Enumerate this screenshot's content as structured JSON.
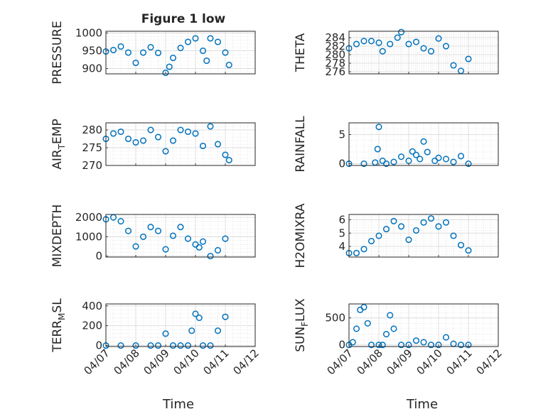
{
  "figure": {
    "title": "Figure 1 low",
    "time_label": "Time",
    "time_ticks": [
      "04/07",
      "04/08",
      "04/09",
      "04/10",
      "04/11",
      "04/12"
    ],
    "marker_color": "#0072bd",
    "marker": "open-circle",
    "grid": "on (major and minor)"
  },
  "chart_data": [
    {
      "type": "scatter",
      "ylabel": "PRESSURE",
      "ylim": [
        885,
        1005
      ],
      "yticks": [
        "1000",
        "950",
        "900"
      ],
      "ytick_values": [
        1000,
        950,
        900
      ],
      "xlim": [
        "04/07",
        "04/12"
      ],
      "x": [
        "04/07 00:00",
        "04/07 06:00",
        "04/07 12:00",
        "04/07 18:00",
        "04/08 00:00",
        "04/08 06:00",
        "04/08 12:00",
        "04/08 18:00",
        "04/09 00:00",
        "04/09 03:00",
        "04/09 06:00",
        "04/09 12:00",
        "04/09 18:00",
        "04/10 00:00",
        "04/10 06:00",
        "04/10 09:00",
        "04/10 12:00",
        "04/10 18:00",
        "04/11 00:00",
        "04/11 03:00"
      ],
      "y": [
        948,
        952,
        962,
        945,
        916,
        945,
        960,
        944,
        888,
        905,
        930,
        958,
        975,
        985,
        950,
        922,
        985,
        975,
        945,
        910
      ]
    },
    {
      "type": "scatter",
      "ylabel": "THETA",
      "ylim": [
        275.5,
        285.5
      ],
      "yticks": [
        "284",
        "282",
        "280",
        "278",
        "276"
      ],
      "ytick_values": [
        284,
        282,
        280,
        278,
        276
      ],
      "xlim": [
        "04/07",
        "04/12"
      ],
      "x": [
        "04/07 00:00",
        "04/07 06:00",
        "04/07 12:00",
        "04/07 18:00",
        "04/08 00:00",
        "04/08 03:00",
        "04/08 09:00",
        "04/08 15:00",
        "04/08 18:00",
        "04/09 00:00",
        "04/09 06:00",
        "04/09 12:00",
        "04/09 18:00",
        "04/10 00:00",
        "04/10 06:00",
        "04/10 12:00",
        "04/10 18:00",
        "04/11 00:00"
      ],
      "y": [
        281.5,
        282.5,
        283.2,
        283.2,
        282.8,
        280.8,
        282.5,
        284,
        285.3,
        282.5,
        283,
        281.5,
        280.8,
        283.8,
        282,
        277.5,
        276.2,
        279
      ]
    },
    {
      "type": "scatter",
      "ylabel": "AIR_TEMP",
      "ylim": [
        270,
        282
      ],
      "yticks": [
        "280",
        "275",
        "270"
      ],
      "ytick_values": [
        280,
        275,
        270
      ],
      "xlim": [
        "04/07",
        "04/12"
      ],
      "x": [
        "04/07 00:00",
        "04/07 06:00",
        "04/07 12:00",
        "04/07 18:00",
        "04/08 00:00",
        "04/08 06:00",
        "04/08 12:00",
        "04/08 18:00",
        "04/09 00:00",
        "04/09 06:00",
        "04/09 12:00",
        "04/09 18:00",
        "04/10 00:00",
        "04/10 06:00",
        "04/10 12:00",
        "04/10 18:00",
        "04/11 00:00",
        "04/11 03:00"
      ],
      "y": [
        277.5,
        279,
        279.5,
        277.5,
        276.5,
        277,
        280,
        278,
        274,
        277,
        280,
        279.5,
        279,
        275.5,
        281,
        276,
        273,
        271.5
      ]
    },
    {
      "type": "scatter",
      "ylabel": "RAINFALL",
      "ylim": [
        -0.3,
        7
      ],
      "yticks": [
        "5",
        "0"
      ],
      "ytick_values": [
        5,
        0
      ],
      "xlim": [
        "04/07",
        "04/12"
      ],
      "x": [
        "04/07 00:00",
        "04/07 12:00",
        "04/07 21:00",
        "04/07 23:00",
        "04/08 00:00",
        "04/08 03:00",
        "04/08 06:00",
        "04/08 12:00",
        "04/08 18:00",
        "04/09 00:00",
        "04/09 03:00",
        "04/09 06:00",
        "04/09 09:00",
        "04/09 12:00",
        "04/09 15:00",
        "04/09 21:00",
        "04/10 00:00",
        "04/10 06:00",
        "04/10 12:00",
        "04/10 18:00",
        "04/11 00:00"
      ],
      "y": [
        0,
        0,
        0.2,
        2.5,
        6.3,
        0.5,
        0,
        0.3,
        1.2,
        0.5,
        2.1,
        1.5,
        0.8,
        3.8,
        2,
        0.5,
        1,
        0.8,
        0.3,
        1.3,
        0
      ]
    },
    {
      "type": "scatter",
      "ylabel": "MIXDEPTH",
      "ylim": [
        -50,
        2150
      ],
      "yticks": [
        "2000",
        "1000",
        "0"
      ],
      "ytick_values": [
        2000,
        1000,
        0
      ],
      "xlim": [
        "04/07",
        "04/12"
      ],
      "x": [
        "04/07 00:00",
        "04/07 06:00",
        "04/07 12:00",
        "04/07 18:00",
        "04/08 00:00",
        "04/08 06:00",
        "04/08 12:00",
        "04/08 18:00",
        "04/09 00:00",
        "04/09 06:00",
        "04/09 12:00",
        "04/09 18:00",
        "04/10 00:00",
        "04/10 03:00",
        "04/10 06:00",
        "04/10 12:00",
        "04/10 18:00",
        "04/11 00:00"
      ],
      "y": [
        1900,
        2000,
        1800,
        1300,
        500,
        1000,
        1500,
        1300,
        350,
        1050,
        1500,
        900,
        600,
        450,
        750,
        0,
        300,
        900
      ]
    },
    {
      "type": "scatter",
      "ylabel": "H2OMIXRA",
      "ylim": [
        3.2,
        6.4
      ],
      "yticks": [
        "6",
        "5",
        "4"
      ],
      "ytick_values": [
        6,
        5,
        4
      ],
      "xlim": [
        "04/07",
        "04/12"
      ],
      "x": [
        "04/07 00:00",
        "04/07 06:00",
        "04/07 12:00",
        "04/07 18:00",
        "04/08 00:00",
        "04/08 06:00",
        "04/08 12:00",
        "04/08 18:00",
        "04/09 00:00",
        "04/09 06:00",
        "04/09 12:00",
        "04/09 18:00",
        "04/10 00:00",
        "04/10 06:00",
        "04/10 12:00",
        "04/10 18:00",
        "04/11 00:00"
      ],
      "y": [
        3.5,
        3.5,
        3.8,
        4.4,
        4.8,
        5.3,
        5.9,
        5.5,
        4.5,
        5.2,
        5.8,
        6.1,
        5.5,
        5.8,
        4.8,
        4.1,
        3.7
      ]
    },
    {
      "type": "scatter",
      "ylabel": "TERR_MSL",
      "ylim": [
        -10,
        420
      ],
      "yticks": [
        "400",
        "200",
        "0"
      ],
      "ytick_values": [
        400,
        200,
        0
      ],
      "xlim": [
        "04/07",
        "04/12"
      ],
      "x": [
        "04/07 00:00",
        "04/07 12:00",
        "04/08 00:00",
        "04/08 12:00",
        "04/08 18:00",
        "04/09 00:00",
        "04/09 06:00",
        "04/09 12:00",
        "04/09 18:00",
        "04/09 21:00",
        "04/10 00:00",
        "04/10 03:00",
        "04/10 06:00",
        "04/10 12:00",
        "04/10 18:00",
        "04/11 00:00"
      ],
      "y": [
        0,
        0,
        0,
        0,
        0,
        120,
        0,
        0,
        0,
        150,
        320,
        280,
        0,
        0,
        150,
        290
      ]
    },
    {
      "type": "scatter",
      "ylabel": "SUN_FLUX",
      "ylim": [
        -30,
        760
      ],
      "yticks": [
        "500",
        "0"
      ],
      "ytick_values": [
        500,
        0
      ],
      "xlim": [
        "04/07",
        "04/12"
      ],
      "x": [
        "04/07 00:00",
        "04/07 03:00",
        "04/07 06:00",
        "04/07 09:00",
        "04/07 12:00",
        "04/07 15:00",
        "04/07 18:00",
        "04/08 00:00",
        "04/08 03:00",
        "04/08 06:00",
        "04/08 09:00",
        "04/08 12:00",
        "04/08 18:00",
        "04/09 00:00",
        "04/09 06:00",
        "04/09 12:00",
        "04/09 18:00",
        "04/10 00:00",
        "04/10 06:00",
        "04/10 12:00",
        "04/10 18:00",
        "04/11 00:00"
      ],
      "y": [
        0,
        50,
        300,
        650,
        700,
        400,
        0,
        0,
        0,
        200,
        550,
        300,
        0,
        0,
        80,
        50,
        0,
        0,
        140,
        20,
        0,
        0
      ]
    }
  ]
}
